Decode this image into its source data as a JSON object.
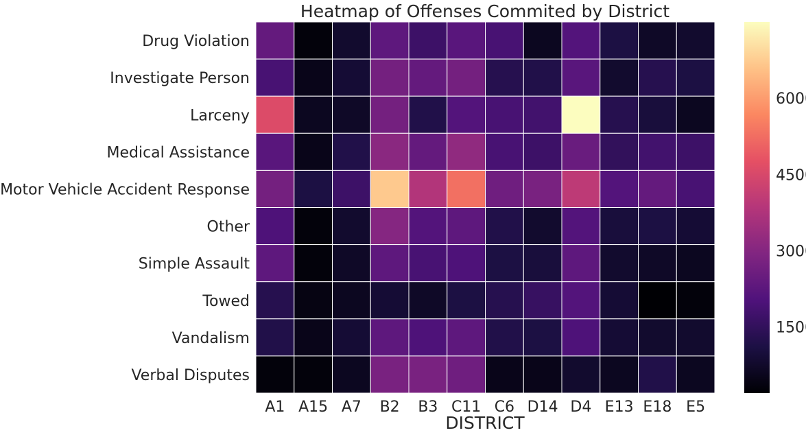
{
  "chart_data": {
    "type": "heatmap",
    "title": "Heatmap of Offenses Commited by District",
    "xlabel": "DISTRICT",
    "ylabel": "",
    "x": [
      "A1",
      "A15",
      "A7",
      "B2",
      "B3",
      "C11",
      "C6",
      "D14",
      "D4",
      "E13",
      "E18",
      "E5"
    ],
    "y": [
      "Drug Violation",
      "Investigate Person",
      "Larceny",
      "Medical Assistance",
      "Motor Vehicle Accident Response",
      "Other",
      "Simple Assault",
      "Towed",
      "Vandalism",
      "Verbal Disputes"
    ],
    "values": [
      [
        2400,
        300,
        800,
        2300,
        1700,
        2200,
        1900,
        600,
        2100,
        1100,
        700,
        800
      ],
      [
        1900,
        500,
        900,
        2700,
        2400,
        2700,
        1300,
        1200,
        2200,
        800,
        1300,
        1100
      ],
      [
        4600,
        600,
        700,
        2700,
        1200,
        2100,
        1900,
        1800,
        7500,
        1300,
        1000,
        600
      ],
      [
        2200,
        500,
        1200,
        3100,
        2400,
        3200,
        1900,
        1700,
        2500,
        1500,
        1800,
        1700
      ],
      [
        2700,
        1100,
        1700,
        6700,
        3800,
        5300,
        2600,
        2800,
        4000,
        2100,
        2400,
        1900
      ],
      [
        2000,
        300,
        800,
        3000,
        2100,
        2300,
        1200,
        800,
        2100,
        1000,
        1100,
        900
      ],
      [
        2300,
        300,
        700,
        2300,
        1900,
        2000,
        1100,
        1000,
        2300,
        800,
        700,
        600
      ],
      [
        1300,
        400,
        600,
        900,
        700,
        1100,
        1300,
        1600,
        2100,
        900,
        200,
        300
      ],
      [
        1200,
        500,
        900,
        2300,
        2000,
        2300,
        1200,
        1100,
        2000,
        900,
        800,
        800
      ],
      [
        300,
        300,
        600,
        2800,
        2800,
        2600,
        500,
        500,
        800,
        600,
        1200,
        600
      ]
    ],
    "colorbar": {
      "min": 200,
      "max": 7500,
      "ticks": [
        1500,
        3000,
        4500,
        6000
      ],
      "colormap": "magma"
    },
    "grid": false,
    "legend": "colorbar-right"
  }
}
